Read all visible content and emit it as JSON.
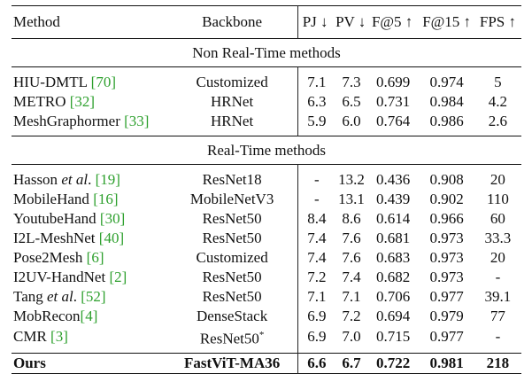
{
  "header": {
    "method": "Method",
    "backbone": "Backbone",
    "pj": "PJ ↓",
    "pv": "PV ↓",
    "f5": "F@5 ↑",
    "f15": "F@15 ↑",
    "fps": "FPS ↑"
  },
  "sections": [
    {
      "title": "Non Real-Time methods",
      "rows": [
        {
          "method": "HIU-DMTL ",
          "ref": "[70]",
          "method_suffix": "",
          "backbone": "Customized",
          "pj": "7.1",
          "pv": "7.3",
          "f5": "0.699",
          "f15": "0.974",
          "fps": "5"
        },
        {
          "method": "METRO ",
          "ref": "[32]",
          "method_suffix": "",
          "backbone": "HRNet",
          "pj": "6.3",
          "pv": "6.5",
          "f5": "0.731",
          "f15": "0.984",
          "fps": "4.2"
        },
        {
          "method": "MeshGraphormer ",
          "ref": "[33]",
          "method_suffix": "",
          "backbone": "HRNet",
          "pj": "5.9",
          "pv": "6.0",
          "f5": "0.764",
          "f15": "0.986",
          "fps": "2.6"
        }
      ]
    },
    {
      "title": "Real-Time methods",
      "rows": [
        {
          "method": "Hasson ",
          "italic": "et al",
          "method_mid": ". ",
          "ref": "[19]",
          "backbone": "ResNet18",
          "pj": "-",
          "pv": "13.2",
          "f5": "0.436",
          "f15": "0.908",
          "fps": "20"
        },
        {
          "method": "MobileHand ",
          "ref": "[16]",
          "backbone": "MobileNetV3",
          "pj": "-",
          "pv": "13.1",
          "f5": "0.439",
          "f15": "0.902",
          "fps": "110"
        },
        {
          "method": "YoutubeHand ",
          "ref": "[30]",
          "backbone": "ResNet50",
          "pj": "8.4",
          "pv": "8.6",
          "f5": "0.614",
          "f15": "0.966",
          "fps": "60"
        },
        {
          "method": "I2L-MeshNet ",
          "ref": "[40]",
          "backbone": "ResNet50",
          "pj": "7.4",
          "pv": "7.6",
          "f5": "0.681",
          "f15": "0.973",
          "fps": "33.3"
        },
        {
          "method": "Pose2Mesh ",
          "ref": "[6]",
          "backbone": "Customized",
          "pj": "7.4",
          "pv": "7.6",
          "f5": "0.683",
          "f15": "0.973",
          "fps": "20"
        },
        {
          "method": "I2UV-HandNet ",
          "ref": "[2]",
          "backbone": "ResNet50",
          "pj": "7.2",
          "pv": "7.4",
          "f5": "0.682",
          "f15": "0.973",
          "fps": "-"
        },
        {
          "method": "Tang ",
          "italic": "et al",
          "method_mid": ". ",
          "ref": "[52]",
          "backbone": "ResNet50",
          "pj": "7.1",
          "pv": "7.1",
          "f5": "0.706",
          "f15": "0.977",
          "fps": "39.1"
        },
        {
          "method": "MobRecon",
          "ref": "[4]",
          "backbone": "DenseStack",
          "pj": "6.9",
          "pv": "7.2",
          "f5": "0.694",
          "f15": "0.979",
          "fps": "77"
        },
        {
          "method": "CMR ",
          "ref": "[3]",
          "backbone": "ResNet50",
          "backbone_sup": "*",
          "pj": "6.9",
          "pv": "7.0",
          "f5": "0.715",
          "f15": "0.977",
          "fps": "-"
        }
      ]
    }
  ],
  "ours": {
    "method": "Ours",
    "backbone": "FastViT-MA36",
    "pj": "6.6",
    "pv": "6.7",
    "f5": "0.722",
    "f15": "0.981",
    "fps": "218"
  },
  "colors": {
    "reference_link": "#2ea02e",
    "rule": "#111111"
  }
}
